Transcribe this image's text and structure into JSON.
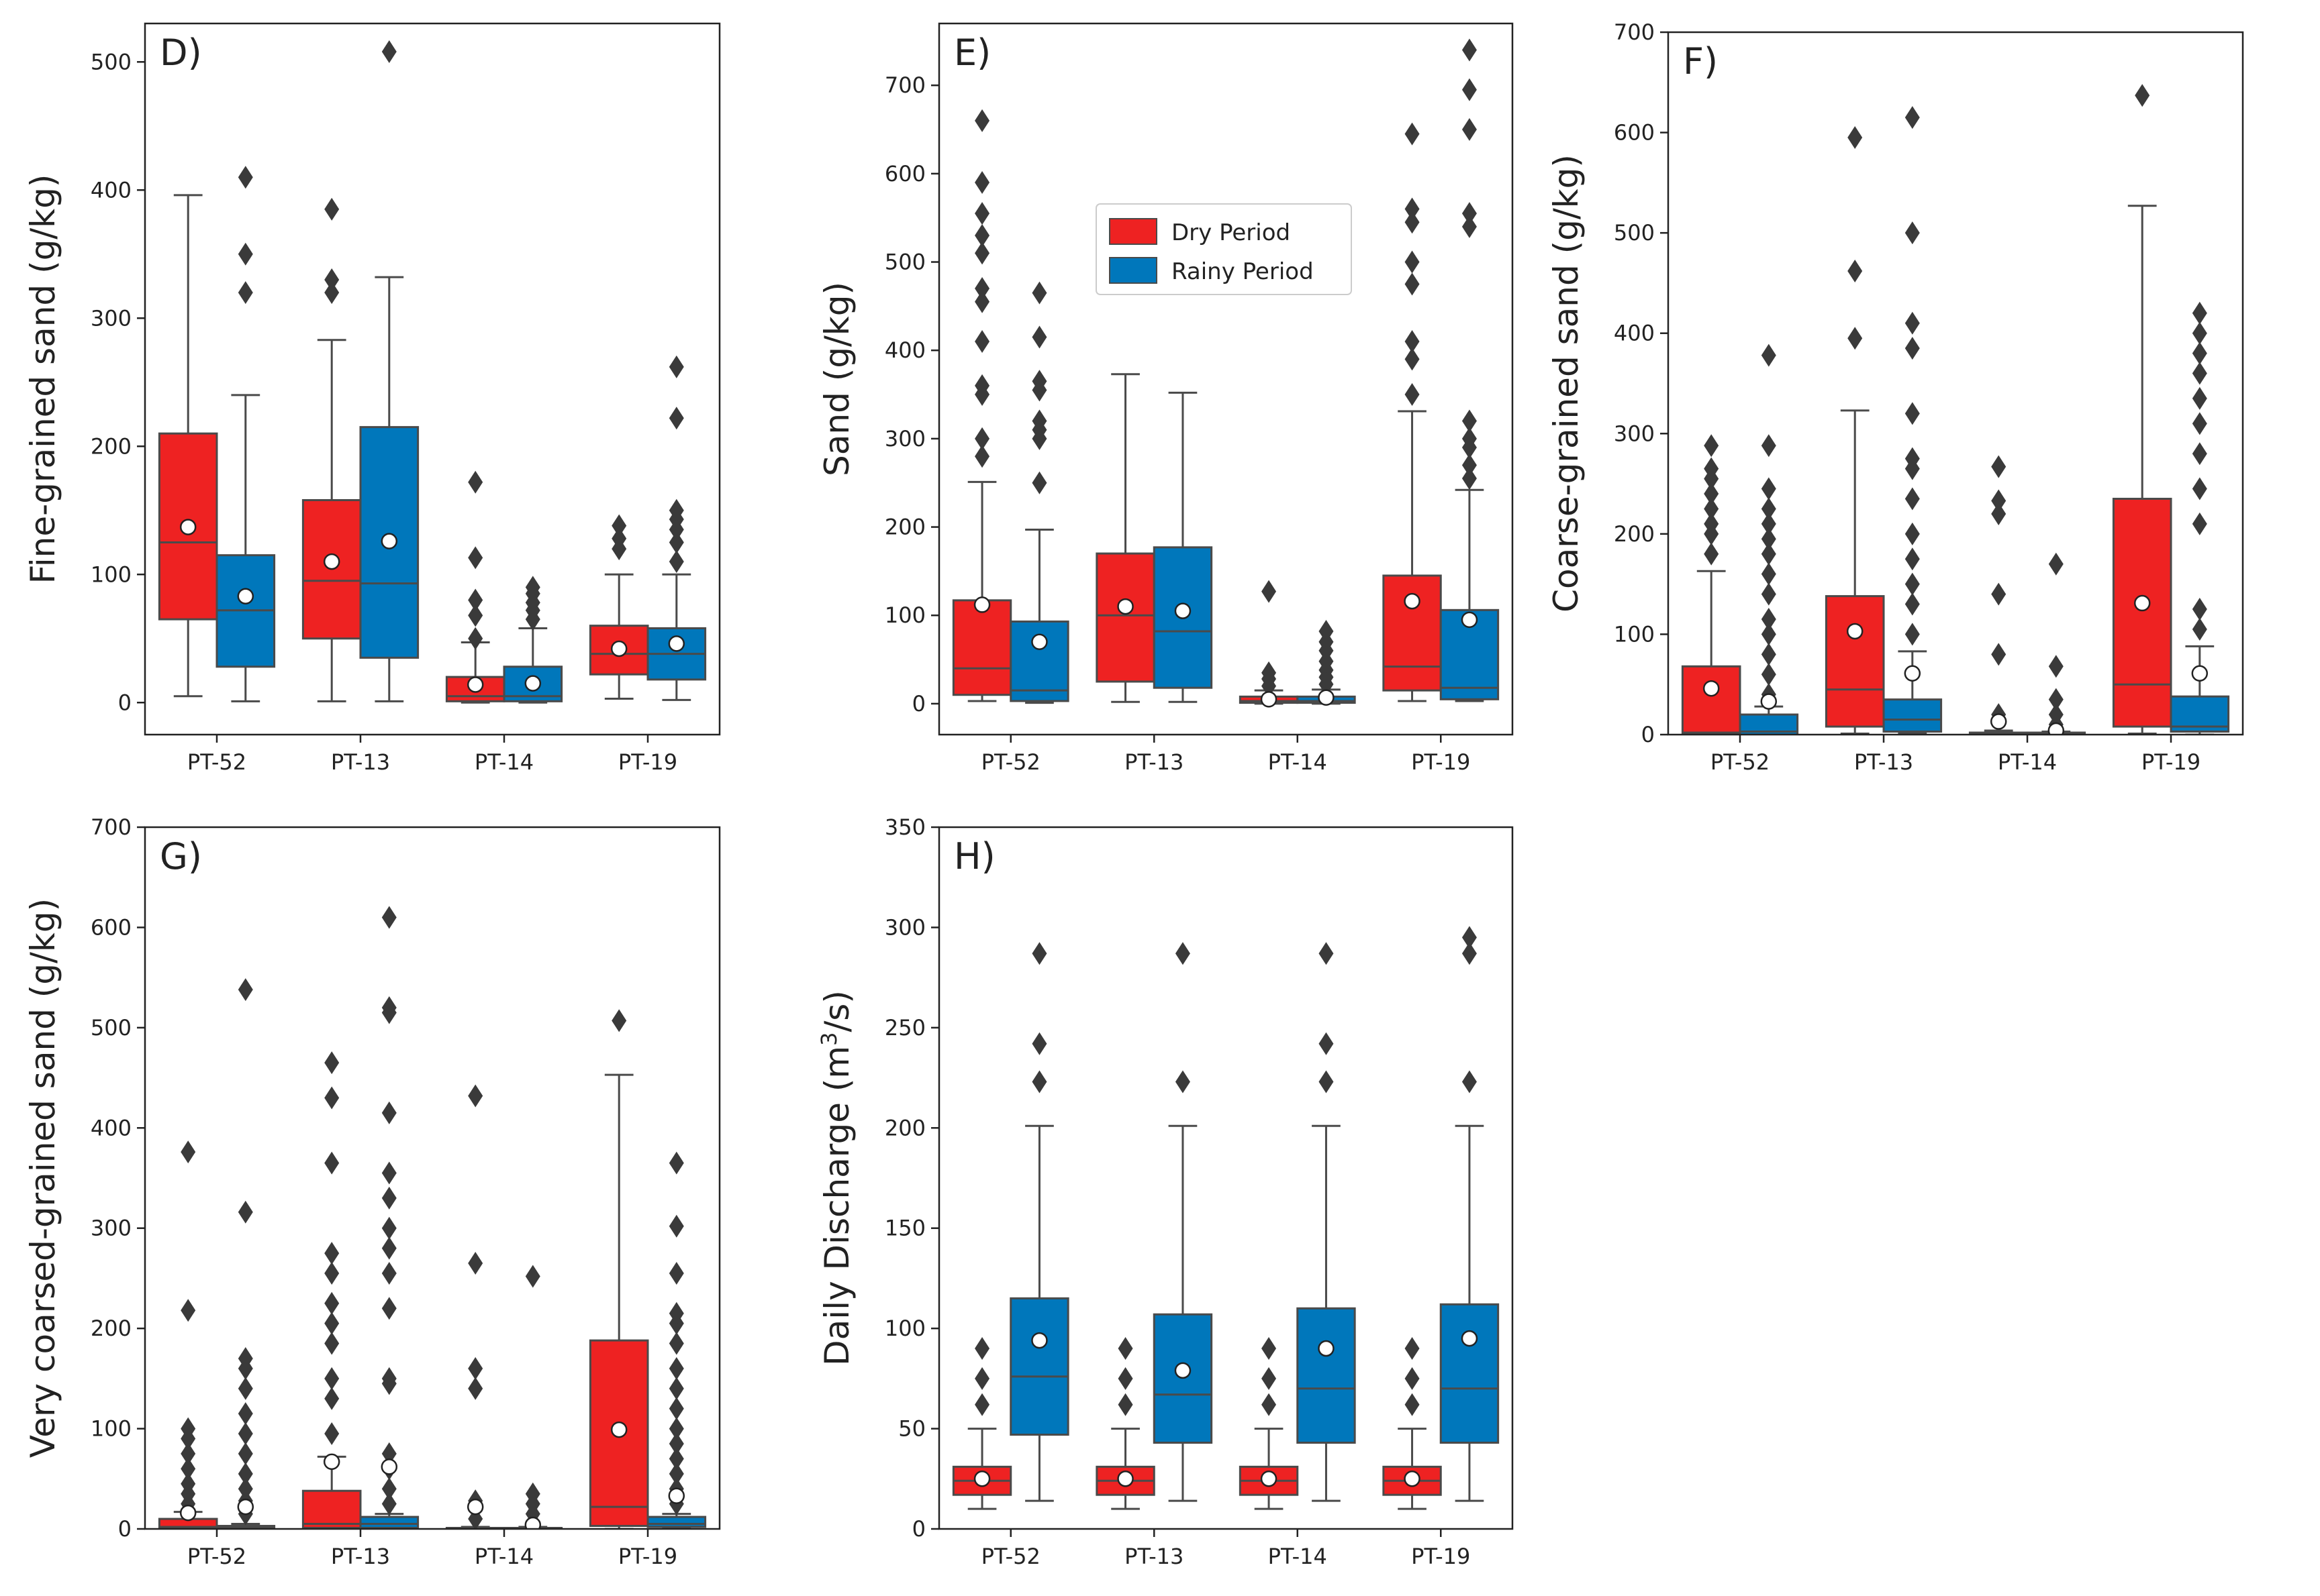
{
  "figure": {
    "colors": {
      "dry": "#ee2222",
      "rainy": "#0077bb",
      "line": "#4a4a4a",
      "mean_fill": "#ffffff",
      "mean_stroke": "#222222"
    },
    "legend": {
      "dry_label": "Dry Period",
      "rainy_label": "Rainy Period"
    }
  },
  "chart_data": [
    {
      "id": "D",
      "type": "box",
      "panel_label": "D)",
      "ylabel": "Fine-grained sand (g/kg)",
      "ylabel_sup": "",
      "ylabel_suffix": "",
      "ylim": [
        -25,
        530
      ],
      "yticks": [
        0,
        100,
        200,
        300,
        400,
        500
      ],
      "categories": [
        "PT-52",
        "PT-13",
        "PT-14",
        "PT-19"
      ],
      "series": [
        {
          "name": "Dry Period",
          "boxes": [
            {
              "whislo": 5,
              "q1": 65,
              "med": 125,
              "q3": 210,
              "whishi": 396,
              "mean": 137,
              "fliers": []
            },
            {
              "whislo": 1,
              "q1": 50,
              "med": 95,
              "q3": 158,
              "whishi": 283,
              "mean": 110,
              "fliers": [
                320,
                330,
                385
              ]
            },
            {
              "whislo": 0,
              "q1": 1,
              "med": 5,
              "q3": 20,
              "whishi": 47,
              "mean": 14,
              "fliers": [
                50,
                68,
                80,
                113,
                172
              ]
            },
            {
              "whislo": 3,
              "q1": 22,
              "med": 38,
              "q3": 60,
              "whishi": 100,
              "mean": 42,
              "fliers": [
                120,
                128,
                138
              ]
            }
          ]
        },
        {
          "name": "Rainy Period",
          "boxes": [
            {
              "whislo": 1,
              "q1": 28,
              "med": 72,
              "q3": 115,
              "whishi": 240,
              "mean": 83,
              "fliers": [
                320,
                350,
                410
              ]
            },
            {
              "whislo": 1,
              "q1": 35,
              "med": 93,
              "q3": 215,
              "whishi": 332,
              "mean": 126,
              "fliers": [
                508
              ]
            },
            {
              "whislo": 0,
              "q1": 1,
              "med": 5,
              "q3": 28,
              "whishi": 58,
              "mean": 15,
              "fliers": [
                65,
                72,
                78,
                85,
                90
              ]
            },
            {
              "whislo": 2,
              "q1": 18,
              "med": 38,
              "q3": 58,
              "whishi": 100,
              "mean": 46,
              "fliers": [
                110,
                125,
                135,
                143,
                150,
                222,
                262
              ]
            }
          ]
        }
      ]
    },
    {
      "id": "E",
      "type": "box",
      "panel_label": "E)",
      "ylabel": "Sand (g/kg)",
      "ylabel_sup": "",
      "ylabel_suffix": "",
      "ylim": [
        -35,
        770
      ],
      "yticks": [
        0,
        100,
        200,
        300,
        400,
        500,
        600,
        700
      ],
      "categories": [
        "PT-52",
        "PT-13",
        "PT-14",
        "PT-19"
      ],
      "series": [
        {
          "name": "Dry Period",
          "boxes": [
            {
              "whislo": 3,
              "q1": 10,
              "med": 40,
              "q3": 117,
              "whishi": 251,
              "mean": 112,
              "fliers": [
                280,
                300,
                350,
                360,
                410,
                455,
                470,
                510,
                530,
                555,
                590,
                660
              ]
            },
            {
              "whislo": 2,
              "q1": 25,
              "med": 100,
              "q3": 170,
              "whishi": 373,
              "mean": 110,
              "fliers": []
            },
            {
              "whislo": 0,
              "q1": 1,
              "med": 3,
              "q3": 8,
              "whishi": 15,
              "mean": 5,
              "fliers": [
                20,
                28,
                35,
                127
              ]
            },
            {
              "whislo": 3,
              "q1": 15,
              "med": 42,
              "q3": 145,
              "whishi": 331,
              "mean": 116,
              "fliers": [
                350,
                390,
                410,
                475,
                500,
                545,
                560,
                645
              ]
            }
          ]
        },
        {
          "name": "Rainy Period",
          "boxes": [
            {
              "whislo": 1,
              "q1": 3,
              "med": 15,
              "q3": 93,
              "whishi": 197,
              "mean": 70,
              "fliers": [
                250,
                300,
                310,
                320,
                355,
                365,
                415,
                465
              ]
            },
            {
              "whislo": 2,
              "q1": 18,
              "med": 82,
              "q3": 177,
              "whishi": 352,
              "mean": 105,
              "fliers": []
            },
            {
              "whislo": 0,
              "q1": 1,
              "med": 3,
              "q3": 8,
              "whishi": 16,
              "mean": 7,
              "fliers": [
                22,
                30,
                38,
                48,
                60,
                70,
                82
              ]
            },
            {
              "whislo": 3,
              "q1": 5,
              "med": 18,
              "q3": 106,
              "whishi": 242,
              "mean": 95,
              "fliers": [
                255,
                270,
                290,
                300,
                320,
                540,
                555,
                650,
                695,
                740
              ]
            }
          ]
        }
      ]
    },
    {
      "id": "F",
      "type": "box",
      "panel_label": "F)",
      "ylabel": "Coarse-grained sand (g/kg)",
      "ylabel_sup": "",
      "ylabel_suffix": "",
      "ylim": [
        0,
        700
      ],
      "yticks": [
        0,
        100,
        200,
        300,
        400,
        500,
        600,
        700
      ],
      "categories": [
        "PT-52",
        "PT-13",
        "PT-14",
        "PT-19"
      ],
      "series": [
        {
          "name": "Dry Period",
          "boxes": [
            {
              "whislo": 0,
              "q1": 1,
              "med": 2,
              "q3": 68,
              "whishi": 163,
              "mean": 46,
              "fliers": [
                180,
                200,
                210,
                225,
                240,
                255,
                265,
                288
              ]
            },
            {
              "whislo": 1,
              "q1": 8,
              "med": 45,
              "q3": 138,
              "whishi": 323,
              "mean": 103,
              "fliers": [
                395,
                462,
                595
              ]
            },
            {
              "whislo": 0,
              "q1": 0,
              "med": 1,
              "q3": 2,
              "whishi": 4,
              "mean": 13,
              "fliers": [
                20,
                80,
                140,
                220,
                233,
                267
              ]
            },
            {
              "whislo": 1,
              "q1": 8,
              "med": 50,
              "q3": 235,
              "whishi": 527,
              "mean": 131,
              "fliers": [
                637
              ]
            }
          ]
        },
        {
          "name": "Rainy Period",
          "boxes": [
            {
              "whislo": 0,
              "q1": 0,
              "med": 3,
              "q3": 20,
              "whishi": 28,
              "mean": 33,
              "fliers": [
                40,
                60,
                80,
                100,
                115,
                140,
                160,
                180,
                195,
                210,
                225,
                245,
                288,
                378
              ]
            },
            {
              "whislo": 1,
              "q1": 3,
              "med": 15,
              "q3": 35,
              "whishi": 83,
              "mean": 61,
              "fliers": [
                100,
                130,
                150,
                175,
                200,
                235,
                265,
                275,
                320,
                385,
                410,
                500,
                615
              ]
            },
            {
              "whislo": 0,
              "q1": 0,
              "med": 1,
              "q3": 2,
              "whishi": 3,
              "mean": 4,
              "fliers": [
                10,
                20,
                35,
                68,
                170
              ]
            },
            {
              "whislo": 0,
              "q1": 3,
              "med": 8,
              "q3": 38,
              "whishi": 88,
              "mean": 61,
              "fliers": [
                105,
                125,
                210,
                245,
                280,
                310,
                335,
                360,
                380,
                400,
                420
              ]
            }
          ]
        }
      ]
    },
    {
      "id": "G",
      "type": "box",
      "panel_label": "G)",
      "ylabel": "Very coarsed-grained sand (g/kg)",
      "ylabel_sup": "",
      "ylabel_suffix": "",
      "ylim": [
        0,
        700
      ],
      "yticks": [
        0,
        100,
        200,
        300,
        400,
        500,
        600,
        700
      ],
      "categories": [
        "PT-52",
        "PT-13",
        "PT-14",
        "PT-19"
      ],
      "series": [
        {
          "name": "Dry Period",
          "boxes": [
            {
              "whislo": 0,
              "q1": 0,
              "med": 2,
              "q3": 10,
              "whishi": 17,
              "mean": 16,
              "fliers": [
                25,
                35,
                45,
                60,
                75,
                90,
                100,
                218,
                376
              ]
            },
            {
              "whislo": 0,
              "q1": 1,
              "med": 5,
              "q3": 38,
              "whishi": 72,
              "mean": 67,
              "fliers": [
                95,
                130,
                150,
                185,
                205,
                225,
                255,
                275,
                365,
                430,
                465
              ]
            },
            {
              "whislo": 0,
              "q1": 0,
              "med": 0,
              "q3": 1,
              "whishi": 2,
              "mean": 22,
              "fliers": [
                10,
                20,
                28,
                140,
                160,
                265,
                432
              ]
            },
            {
              "whislo": 0,
              "q1": 3,
              "med": 22,
              "q3": 188,
              "whishi": 453,
              "mean": 99,
              "fliers": [
                507
              ]
            }
          ]
        },
        {
          "name": "Rainy Period",
          "boxes": [
            {
              "whislo": 0,
              "q1": 0,
              "med": 1,
              "q3": 3,
              "whishi": 5,
              "mean": 22,
              "fliers": [
                15,
                28,
                40,
                55,
                75,
                95,
                115,
                140,
                160,
                170,
                316,
                538
              ]
            },
            {
              "whislo": 0,
              "q1": 1,
              "med": 5,
              "q3": 12,
              "whishi": 15,
              "mean": 62,
              "fliers": [
                25,
                40,
                60,
                75,
                145,
                150,
                220,
                255,
                280,
                300,
                330,
                355,
                415,
                515,
                520,
                610
              ]
            },
            {
              "whislo": 0,
              "q1": 0,
              "med": 0,
              "q3": 1,
              "whishi": 2,
              "mean": 4,
              "fliers": [
                15,
                25,
                35,
                252
              ]
            },
            {
              "whislo": 0,
              "q1": 2,
              "med": 5,
              "q3": 12,
              "whishi": 15,
              "mean": 33,
              "fliers": [
                25,
                40,
                55,
                70,
                85,
                100,
                120,
                140,
                160,
                185,
                205,
                215,
                255,
                302,
                365
              ]
            }
          ]
        }
      ]
    },
    {
      "id": "H",
      "type": "box",
      "panel_label": "H)",
      "ylabel": "Daily Discharge (m",
      "ylabel_sup": "3",
      "ylabel_suffix": "/s)",
      "ylim": [
        0,
        350
      ],
      "yticks": [
        0,
        50,
        100,
        150,
        200,
        250,
        300,
        350
      ],
      "categories": [
        "PT-52",
        "PT-13",
        "PT-14",
        "PT-19"
      ],
      "series": [
        {
          "name": "Dry Period",
          "boxes": [
            {
              "whislo": 10,
              "q1": 17,
              "med": 24,
              "q3": 31,
              "whishi": 50,
              "mean": 25,
              "fliers": [
                62,
                75,
                90
              ]
            },
            {
              "whislo": 10,
              "q1": 17,
              "med": 24,
              "q3": 31,
              "whishi": 50,
              "mean": 25,
              "fliers": [
                62,
                75,
                90
              ]
            },
            {
              "whislo": 10,
              "q1": 17,
              "med": 24,
              "q3": 31,
              "whishi": 50,
              "mean": 25,
              "fliers": [
                62,
                75,
                90
              ]
            },
            {
              "whislo": 10,
              "q1": 17,
              "med": 24,
              "q3": 31,
              "whishi": 50,
              "mean": 25,
              "fliers": [
                62,
                75,
                90
              ]
            }
          ]
        },
        {
          "name": "Rainy Period",
          "boxes": [
            {
              "whislo": 14,
              "q1": 47,
              "med": 76,
              "q3": 115,
              "whishi": 201,
              "mean": 94,
              "fliers": [
                223,
                242,
                287
              ]
            },
            {
              "whislo": 14,
              "q1": 43,
              "med": 67,
              "q3": 107,
              "whishi": 201,
              "mean": 79,
              "fliers": [
                223,
                287
              ]
            },
            {
              "whislo": 14,
              "q1": 43,
              "med": 70,
              "q3": 110,
              "whishi": 201,
              "mean": 90,
              "fliers": [
                223,
                242,
                287
              ]
            },
            {
              "whislo": 14,
              "q1": 43,
              "med": 70,
              "q3": 112,
              "whishi": 201,
              "mean": 95,
              "fliers": [
                223,
                287,
                295
              ]
            }
          ]
        }
      ]
    }
  ]
}
